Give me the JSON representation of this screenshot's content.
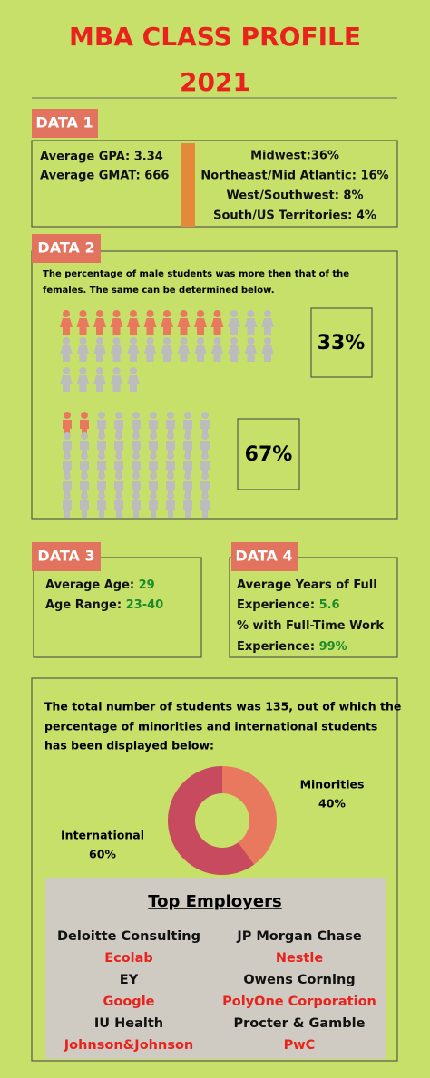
{
  "header": {
    "title": "MBA CLASS PROFILE",
    "year": "2021"
  },
  "data1": {
    "tag": "DATA 1",
    "left": [
      "Average GPA: 3.34",
      "Average GMAT: 666"
    ],
    "right": [
      "Midwest:36%",
      "Northeast/Mid Atlantic: 16%",
      "West/Southwest: 8%",
      "South/US Territories: 4%"
    ]
  },
  "data2": {
    "tag": "DATA 2",
    "text_lines": [
      "The percentage of male students was more then that of the",
      "females. The same can be determined below."
    ],
    "female_pct": "33%",
    "male_pct": "67%"
  },
  "data3": {
    "tag": "DATA 3",
    "items": [
      {
        "label": "Average Age: ",
        "value": "29"
      },
      {
        "label": "Age Range: ",
        "value": "23-40"
      }
    ]
  },
  "data4": {
    "tag": "DATA 4",
    "lines": [
      {
        "label": "Average Years of Full"
      },
      {
        "label": "Experience: ",
        "value": "5.6"
      },
      {
        "label": "% with Full-Time Work"
      },
      {
        "label": "Experience: ",
        "value": "99%"
      }
    ]
  },
  "students": {
    "text_lines": [
      "The total number of students was 135, out of which the",
      "percentage of minorities and international students",
      "has been displayed below:"
    ],
    "chart_data": {
      "type": "donut",
      "categories": [
        "Minorities",
        "International"
      ],
      "values": [
        40,
        60
      ],
      "value_labels": [
        "40%",
        "60%"
      ],
      "colors": [
        "#e8795f",
        "#c84a5f"
      ]
    }
  },
  "employers": {
    "title": "Top Employers",
    "rows": [
      [
        "Deloitte Consulting",
        "JP Morgan Chase"
      ],
      [
        "Ecolab",
        "Nestle"
      ],
      [
        "EY",
        "Owens Corning"
      ],
      [
        "Google",
        "PolyOne Corporation"
      ],
      [
        "IU Health",
        "Procter & Gamble"
      ],
      [
        "Johnson&Johnson",
        "PwC"
      ]
    ]
  }
}
